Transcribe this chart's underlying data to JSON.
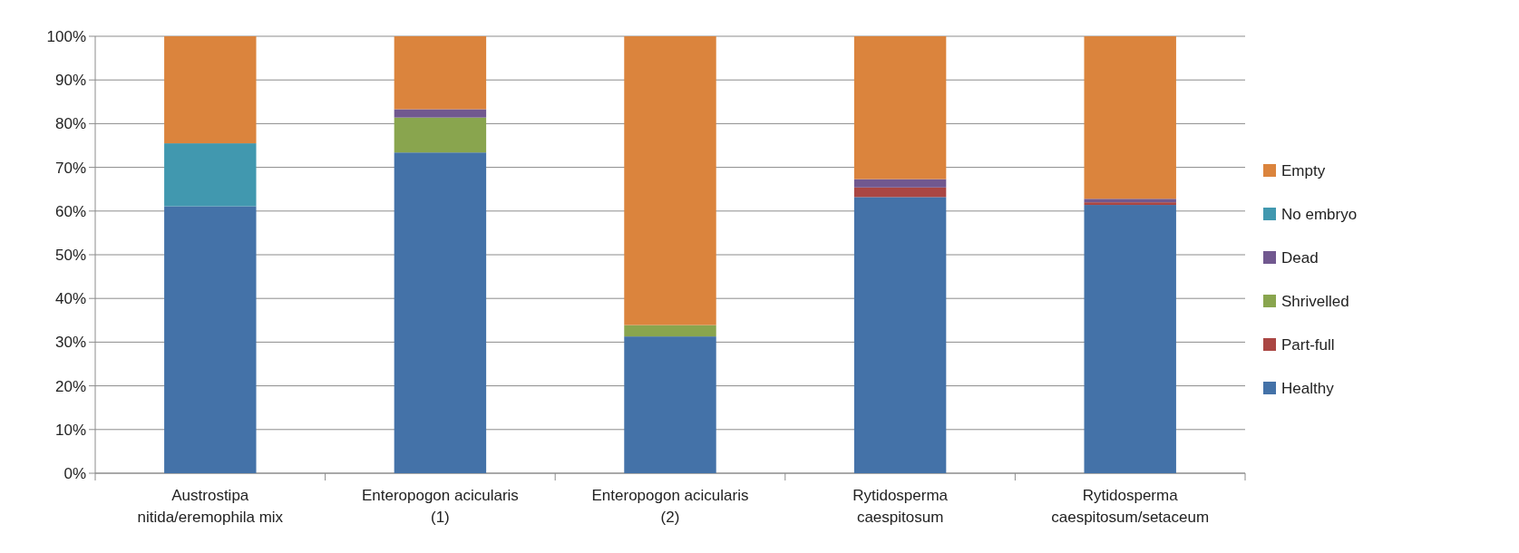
{
  "chart_data": {
    "type": "bar",
    "stacked": true,
    "categories": [
      "Austrostipa nitida/eremophila mix",
      "Enteropogon acicularis (1)",
      "Enteropogon acicularis (2)",
      "Rytidosperma caespitosum",
      "Rytidosperma caespitosum/setaceum"
    ],
    "series": [
      {
        "name": "Healthy",
        "color": "#4472a8",
        "values": [
          61.1,
          73.4,
          31.3,
          63.2,
          61.4
        ]
      },
      {
        "name": "Part-full",
        "color": "#aa4643",
        "values": [
          0,
          0,
          0,
          2.2,
          0.6
        ]
      },
      {
        "name": "Shrivelled",
        "color": "#89a54e",
        "values": [
          0,
          8,
          2.6,
          0,
          0
        ]
      },
      {
        "name": "Dead",
        "color": "#71588f",
        "values": [
          0,
          1.9,
          0,
          1.9,
          0.8
        ]
      },
      {
        "name": "No embryo",
        "color": "#4198af",
        "values": [
          14.4,
          0,
          0,
          0,
          0
        ]
      },
      {
        "name": "Empty",
        "color": "#db843d",
        "values": [
          24.5,
          16.7,
          66.1,
          32.7,
          37.2
        ]
      }
    ],
    "ylim": [
      0,
      100
    ],
    "yticks": [
      {
        "value": 0,
        "label": "0%"
      },
      {
        "value": 10,
        "label": "10%"
      },
      {
        "value": 20,
        "label": "20%"
      },
      {
        "value": 30,
        "label": "30%"
      },
      {
        "value": 40,
        "label": "40%"
      },
      {
        "value": 50,
        "label": "50%"
      },
      {
        "value": 60,
        "label": "60%"
      },
      {
        "value": 70,
        "label": "70%"
      },
      {
        "value": 80,
        "label": "80%"
      },
      {
        "value": 90,
        "label": "90%"
      },
      {
        "value": 100,
        "label": "100%"
      }
    ],
    "grid": "y",
    "legend": "right"
  }
}
